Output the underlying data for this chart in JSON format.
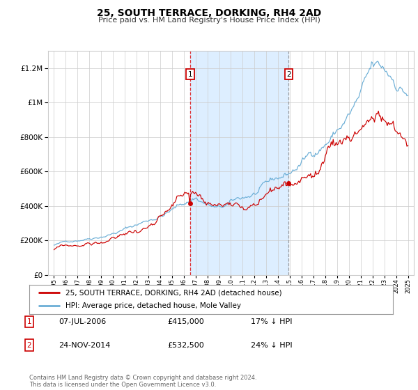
{
  "title": "25, SOUTH TERRACE, DORKING, RH4 2AD",
  "subtitle": "Price paid vs. HM Land Registry's House Price Index (HPI)",
  "legend_line1": "25, SOUTH TERRACE, DORKING, RH4 2AD (detached house)",
  "legend_line2": "HPI: Average price, detached house, Mole Valley",
  "transaction1_date": "07-JUL-2006",
  "transaction1_price": "£415,000",
  "transaction1_hpi": "17% ↓ HPI",
  "transaction1_year": 2006.54,
  "transaction1_value": 415000,
  "transaction2_date": "24-NOV-2014",
  "transaction2_price": "£532,500",
  "transaction2_hpi": "24% ↓ HPI",
  "transaction2_year": 2014.9,
  "transaction2_value": 532500,
  "footer": "Contains HM Land Registry data © Crown copyright and database right 2024.\nThis data is licensed under the Open Government Licence v3.0.",
  "ylim": [
    0,
    1300000
  ],
  "xlim_start": 1994.5,
  "xlim_end": 2025.5,
  "hpi_color": "#6baed6",
  "price_color": "#cc0000",
  "shade_color": "#ddeeff",
  "grid_color": "#cccccc",
  "background_color": "#ffffff"
}
